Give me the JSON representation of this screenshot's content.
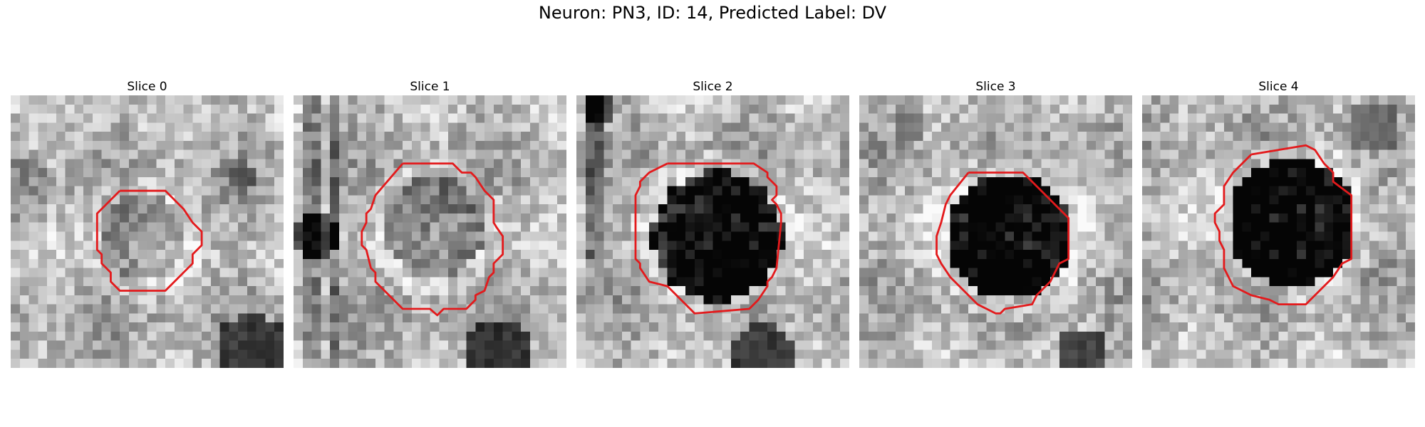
{
  "figure": {
    "title": "Neuron: PN3, ID: 14, Predicted Label: DV",
    "contour_color": "#e31a1c"
  },
  "slices": [
    {
      "label": "Slice 0",
      "contour_shape": "small-octagon"
    },
    {
      "label": "Slice 1",
      "contour_shape": "large-irregular-octagon"
    },
    {
      "label": "Slice 2",
      "contour_shape": "large-octagon"
    },
    {
      "label": "Slice 3",
      "contour_shape": "large-octagon"
    },
    {
      "label": "Slice 4",
      "contour_shape": "large-octagon"
    }
  ]
}
